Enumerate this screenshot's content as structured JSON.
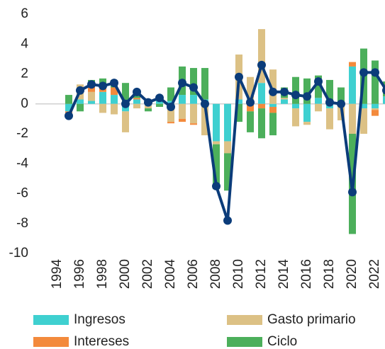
{
  "chart_data": {
    "type": "bar",
    "stacked": true,
    "categories": [
      "1994",
      null,
      "1996",
      null,
      "1998",
      null,
      "2000",
      null,
      "2002",
      null,
      "2004",
      null,
      "2006",
      null,
      "2008",
      null,
      "2010",
      null,
      "2012",
      null,
      "2014",
      null,
      "2016",
      null,
      "2018",
      null,
      "2020",
      null,
      "2022",
      null
    ],
    "series": [
      {
        "name": "Ingresos",
        "color": "#3fd0d0",
        "values": [
          null,
          -0.5,
          0.3,
          0.2,
          0.8,
          0.6,
          -0.5,
          0.3,
          -0.1,
          0.3,
          0.2,
          0.6,
          0.6,
          0.3,
          -2.5,
          -2.5,
          0.3,
          0.3,
          1.4,
          -0.2,
          0.3,
          -0.3,
          -1.2,
          0.4,
          -0.3,
          0,
          2.5,
          -0.3,
          -0.3,
          0.5
        ]
      },
      {
        "name": "Gasto primario",
        "color": "#dcc185",
        "values": [
          null,
          0,
          1.0,
          0.6,
          -0.6,
          -0.7,
          -1.4,
          -0.3,
          -0.2,
          0.2,
          -1.2,
          -1.0,
          -1.3,
          -2.1,
          -0.2,
          -0.8,
          3.0,
          1.5,
          3.6,
          2.3,
          0.1,
          -1.2,
          -0.2,
          -0.5,
          -1.4,
          -1.1,
          -2.0,
          -1.7,
          -0.1,
          0
        ]
      },
      {
        "name": "Intereses",
        "color": "#f38a3c",
        "values": [
          null,
          -0.3,
          0,
          0.4,
          0.3,
          0.5,
          0,
          0.1,
          0.3,
          0,
          -0.1,
          -0.2,
          -0.1,
          0,
          0,
          0,
          0,
          -0.5,
          -0.3,
          -0.4,
          0,
          0,
          0,
          0,
          0,
          0,
          0.3,
          0,
          -0.4,
          0
        ]
      },
      {
        "name": "Ciclo",
        "color": "#4caf5b",
        "values": [
          null,
          0.6,
          -0.5,
          0.4,
          0.6,
          0.5,
          1.4,
          0.4,
          -0.2,
          -0.2,
          0.9,
          1.9,
          1.8,
          2.1,
          -3.0,
          -2.5,
          -1.2,
          -1.4,
          -2.0,
          -1.5,
          0.7,
          1.8,
          1.7,
          1.5,
          1.6,
          1.1,
          -6.7,
          3.7,
          2.9,
          1.0
        ]
      }
    ],
    "line": {
      "color": "#0b3c7a",
      "values": [
        null,
        -0.8,
        0.9,
        1.3,
        1.2,
        1.4,
        0,
        0.8,
        0.1,
        0.4,
        -0.2,
        1.4,
        1.1,
        0,
        -5.5,
        -7.8,
        1.8,
        0.1,
        2.6,
        0.8,
        0.8,
        0.6,
        0.5,
        1.5,
        0.1,
        0,
        -5.9,
        2.1,
        2.1,
        0.9
      ]
    },
    "ylim": [
      -10,
      6
    ],
    "yticks": [
      -10,
      -8,
      -6,
      -4,
      -2,
      0,
      2,
      4,
      6
    ]
  }
}
